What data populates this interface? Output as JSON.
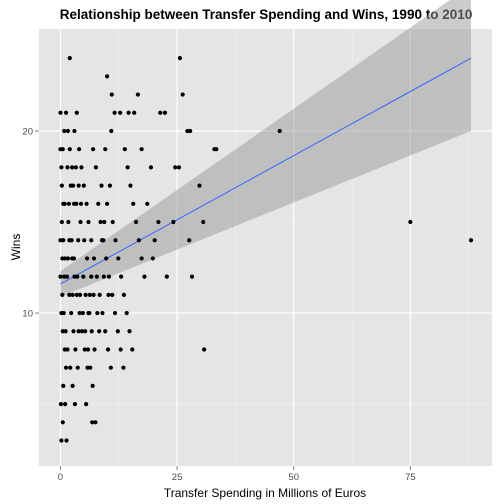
{
  "chart_data": {
    "type": "scatter",
    "title": "Relationship between Transfer Spending and Wins, 1990 to 2010",
    "xlabel": "Transfer Spending in Millions of Euros",
    "ylabel": "Wins",
    "xlim": [
      -4.6,
      92.5
    ],
    "ylim": [
      1.6,
      25.6
    ],
    "x_ticks": [
      0,
      25,
      50,
      75
    ],
    "y_ticks": [
      10,
      20
    ],
    "grid": true,
    "legend": "none",
    "colors": {
      "panel_bg": "#e5e5e5",
      "grid_major": "#ffffff",
      "grid_minor": "#f2f2f2",
      "points": "#000000",
      "fit_line": "#3366ff",
      "confidence_band": "#999999"
    },
    "fit": {
      "x": [
        0,
        88
      ],
      "y": [
        11.6,
        24.0
      ],
      "lower": [
        10.9,
        20.0
      ],
      "upper": [
        12.3,
        28.0
      ]
    },
    "points": [
      [
        0.0,
        21
      ],
      [
        0.2,
        18
      ],
      [
        0.5,
        19
      ],
      [
        0.8,
        20
      ],
      [
        1.2,
        21
      ],
      [
        1.6,
        20
      ],
      [
        2.0,
        24
      ],
      [
        2.5,
        18
      ],
      [
        3.0,
        20
      ],
      [
        3.5,
        21
      ],
      [
        2.2,
        17
      ],
      [
        1.8,
        16
      ],
      [
        0.3,
        15
      ],
      [
        0.6,
        14
      ],
      [
        1.0,
        13
      ],
      [
        1.4,
        12
      ],
      [
        1.9,
        11
      ],
      [
        2.3,
        10
      ],
      [
        2.8,
        9
      ],
      [
        3.2,
        8
      ],
      [
        3.7,
        7
      ],
      [
        0.1,
        5
      ],
      [
        0.5,
        4
      ],
      [
        0.2,
        3
      ],
      [
        1.3,
        3
      ],
      [
        0.0,
        12
      ],
      [
        0.4,
        11
      ],
      [
        0.7,
        10
      ],
      [
        1.1,
        9
      ],
      [
        1.5,
        8
      ],
      [
        2.1,
        7
      ],
      [
        2.6,
        6
      ],
      [
        3.1,
        5
      ],
      [
        0.9,
        16
      ],
      [
        1.7,
        15
      ],
      [
        2.4,
        14
      ],
      [
        2.9,
        13
      ],
      [
        3.6,
        12
      ],
      [
        4.2,
        11
      ],
      [
        4.8,
        10
      ],
      [
        5.3,
        9
      ],
      [
        5.9,
        8
      ],
      [
        6.4,
        7
      ],
      [
        6.9,
        6
      ],
      [
        5.5,
        5
      ],
      [
        7.5,
        4
      ],
      [
        6.8,
        4
      ],
      [
        4.0,
        19
      ],
      [
        4.5,
        18
      ],
      [
        5.0,
        17
      ],
      [
        5.6,
        16
      ],
      [
        6.0,
        15
      ],
      [
        6.6,
        14
      ],
      [
        7.2,
        13
      ],
      [
        7.8,
        12
      ],
      [
        8.4,
        11
      ],
      [
        9.0,
        10
      ],
      [
        9.6,
        9
      ],
      [
        10.2,
        8
      ],
      [
        10.8,
        7
      ],
      [
        4.3,
        15
      ],
      [
        3.8,
        14
      ],
      [
        3.4,
        16
      ],
      [
        8.1,
        16
      ],
      [
        8.6,
        15
      ],
      [
        9.2,
        14
      ],
      [
        9.8,
        13
      ],
      [
        10.4,
        12
      ],
      [
        11.1,
        11
      ],
      [
        11.7,
        10
      ],
      [
        12.3,
        9
      ],
      [
        12.9,
        8
      ],
      [
        13.5,
        7
      ],
      [
        7.0,
        19
      ],
      [
        7.6,
        18
      ],
      [
        8.8,
        17
      ],
      [
        9.4,
        15
      ],
      [
        10.0,
        16
      ],
      [
        10.6,
        17
      ],
      [
        11.2,
        15
      ],
      [
        11.8,
        14
      ],
      [
        12.4,
        13
      ],
      [
        13.0,
        12
      ],
      [
        13.6,
        11
      ],
      [
        14.2,
        10
      ],
      [
        14.8,
        9
      ],
      [
        15.4,
        8
      ],
      [
        9.6,
        19
      ],
      [
        10.9,
        20
      ],
      [
        10.0,
        23
      ],
      [
        11.0,
        22
      ],
      [
        11.6,
        21
      ],
      [
        12.8,
        21
      ],
      [
        13.8,
        19
      ],
      [
        14.4,
        18
      ],
      [
        15.0,
        17
      ],
      [
        15.6,
        16
      ],
      [
        16.2,
        15
      ],
      [
        16.8,
        14
      ],
      [
        17.4,
        13
      ],
      [
        18.0,
        12
      ],
      [
        14.6,
        21
      ],
      [
        15.8,
        21
      ],
      [
        16.6,
        22
      ],
      [
        17.4,
        19
      ],
      [
        18.6,
        16
      ],
      [
        19.8,
        13
      ],
      [
        20.2,
        14
      ],
      [
        21.0,
        15
      ],
      [
        19.4,
        18
      ],
      [
        21.4,
        21
      ],
      [
        22.4,
        21
      ],
      [
        22.8,
        12
      ],
      [
        24.2,
        15
      ],
      [
        24.6,
        18
      ],
      [
        25.4,
        18
      ],
      [
        25.6,
        24
      ],
      [
        26.2,
        22
      ],
      [
        27.2,
        20
      ],
      [
        27.8,
        20
      ],
      [
        27.6,
        14
      ],
      [
        28.2,
        12
      ],
      [
        29.8,
        17
      ],
      [
        30.6,
        15
      ],
      [
        30.8,
        8
      ],
      [
        33.0,
        19
      ],
      [
        33.4,
        19
      ],
      [
        47.0,
        20
      ],
      [
        75.0,
        15
      ],
      [
        88.0,
        14
      ],
      [
        0.0,
        19
      ],
      [
        0.3,
        17
      ],
      [
        0.6,
        16
      ],
      [
        0.0,
        14
      ],
      [
        0.4,
        13
      ],
      [
        0.8,
        12
      ],
      [
        0.2,
        10
      ],
      [
        0.5,
        9
      ],
      [
        0.9,
        8
      ],
      [
        1.2,
        7
      ],
      [
        0.6,
        6
      ],
      [
        1.0,
        5
      ],
      [
        1.9,
        14
      ],
      [
        2.5,
        13
      ],
      [
        3.0,
        12
      ],
      [
        3.5,
        11
      ],
      [
        4.1,
        10
      ],
      [
        4.6,
        9
      ],
      [
        5.2,
        8
      ],
      [
        5.8,
        7
      ],
      [
        6.2,
        10
      ],
      [
        6.6,
        12
      ],
      [
        7.1,
        11
      ],
      [
        1.5,
        18
      ],
      [
        2.0,
        19
      ],
      [
        2.7,
        17
      ],
      [
        3.3,
        18
      ],
      [
        3.9,
        17
      ],
      [
        4.4,
        16
      ],
      [
        5.1,
        14
      ],
      [
        5.7,
        13
      ],
      [
        6.3,
        11
      ],
      [
        6.7,
        9
      ],
      [
        7.3,
        8
      ],
      [
        2.9,
        16
      ],
      [
        1.6,
        13
      ],
      [
        2.6,
        11
      ],
      [
        3.9,
        9
      ],
      [
        4.9,
        12
      ],
      [
        5.4,
        11
      ],
      [
        6.0,
        10
      ],
      [
        7.9,
        10
      ],
      [
        8.3,
        9
      ],
      [
        8.9,
        14
      ],
      [
        9.3,
        12
      ],
      [
        10.3,
        11
      ]
    ]
  }
}
